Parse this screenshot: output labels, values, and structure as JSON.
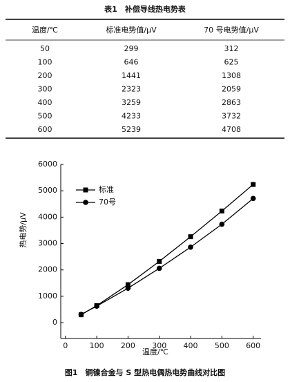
{
  "table": {
    "title": "表1　补偿导线热电势表",
    "header": [
      "温度/℃",
      "标准电势值/μV",
      "70 号电势值/μV"
    ],
    "rows": [
      [
        50,
        299,
        312
      ],
      [
        100,
        646,
        625
      ],
      [
        200,
        1441,
        1308
      ],
      [
        300,
        2323,
        2059
      ],
      [
        400,
        3259,
        2863
      ],
      [
        500,
        4233,
        3732
      ],
      [
        600,
        5239,
        4708
      ]
    ]
  },
  "chart_data": {
    "type": "line",
    "x_label": "温度/℃",
    "y_label": "热电势/μV",
    "caption": "图1　铜镍合金与 S 型热电偶热电势曲线对比图",
    "x": [
      50,
      100,
      200,
      300,
      400,
      500,
      600
    ],
    "series": [
      {
        "name": "标准",
        "color": "#000000",
        "marker": "square",
        "values": [
          299,
          646,
          1441,
          2323,
          3259,
          4233,
          5239
        ]
      },
      {
        "name": "70号",
        "color": "#000000",
        "marker": "circle",
        "values": [
          312,
          625,
          1308,
          2059,
          2863,
          3732,
          4708
        ]
      }
    ],
    "xlim": [
      -15,
      625
    ],
    "ylim": [
      -600,
      6000
    ],
    "xticks": [
      0,
      100,
      200,
      300,
      400,
      500,
      600
    ],
    "yticks": [
      0,
      1000,
      2000,
      3000,
      4000,
      5000,
      6000
    ],
    "legend": "upper-left"
  }
}
